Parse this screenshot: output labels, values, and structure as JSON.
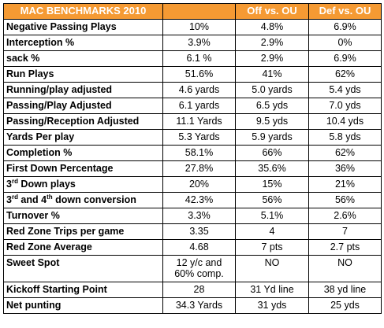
{
  "table": {
    "header": {
      "title": "MAC BENCHMARKS 2010",
      "col1": "",
      "col2": "Off vs. OU",
      "col3": "Def vs. OU"
    },
    "rows": [
      {
        "label": "Negative Passing Plays",
        "v1": "10%",
        "v2": "4.8%",
        "v3": "6.9%"
      },
      {
        "label": "Interception %",
        "v1": "3.9%",
        "v2": "2.9%",
        "v3": "0%"
      },
      {
        "label": "sack %",
        "v1": "6.1 %",
        "v2": "2.9%",
        "v3": "6.9%"
      },
      {
        "label": "Run Plays",
        "v1": "51.6%",
        "v2": "41%",
        "v3": "62%"
      },
      {
        "label": "Running/play adjusted",
        "v1": "4.6 yards",
        "v2": "5.0 yards",
        "v3": "5.4 yds"
      },
      {
        "label": "Passing/Play Adjusted",
        "v1": "6.1 yards",
        "v2": "6.5 yds",
        "v3": "7.0 yds"
      },
      {
        "label": "Passing/Reception Adjusted",
        "v1": "11.1 Yards",
        "v2": "9.5 yds",
        "v3": "10.4 yds"
      },
      {
        "label": "Yards Per play",
        "v1": "5.3 Yards",
        "v2": "5.9 yards",
        "v3": "5.8 yds"
      },
      {
        "label": "Completion %",
        "v1": "58.1%",
        "v2": "66%",
        "v3": "62%"
      },
      {
        "label": "First Down Percentage",
        "v1": "27.8%",
        "v2": "35.6%",
        "v3": "36%"
      },
      {
        "label_a": "3",
        "label_a_sup": "rd",
        "label_b": " Down plays",
        "v1": "20%",
        "v2": "15%",
        "v3": "21%"
      },
      {
        "label_a": "3",
        "label_a_sup": "rd",
        "label_b": " and 4",
        "label_b_sup": "th",
        "label_c": " down conversion",
        "v1": "42.3%",
        "v2": "56%",
        "v3": "56%"
      },
      {
        "label": "Turnover %",
        "v1": "3.3%",
        "v2": "5.1%",
        "v3": "2.6%"
      },
      {
        "label": "Red Zone Trips per game",
        "v1": "3.35",
        "v2": "4",
        "v3": "7"
      },
      {
        "label": "Red Zone Average",
        "v1": "4.68",
        "v2": "7 pts",
        "v3": "2.7 pts"
      },
      {
        "label": "Sweet Spot",
        "v1_line1": "12 y/c and",
        "v1_line2": "60% comp.",
        "v2": "NO",
        "v3": "NO"
      },
      {
        "label": "Kickoff Starting Point",
        "v1": "28",
        "v2": "31 Yd line",
        "v3": "38 yd line"
      },
      {
        "label": "Net punting",
        "v1": "34.3 Yards",
        "v2": "31 yds",
        "v3": "25 yds"
      }
    ]
  }
}
